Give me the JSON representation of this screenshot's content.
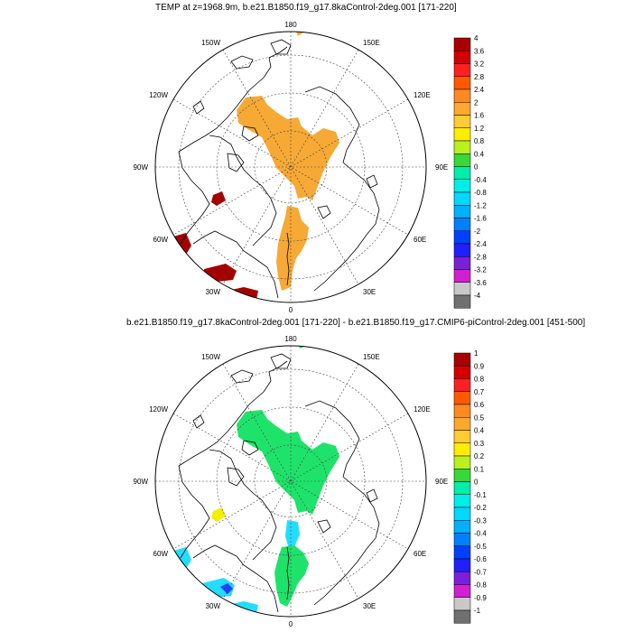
{
  "panels": [
    {
      "title": "TEMP at z=1968.9m, b.e21.B1850.f19_g17.8kaControl-2deg.001 [171-220]",
      "lon_labels": [
        "180",
        "150E",
        "120E",
        "90E",
        "60E",
        "30E",
        "0",
        "30W",
        "60W",
        "90W",
        "120W",
        "150W"
      ],
      "colorbar": {
        "labels": [
          "4",
          "3.6",
          "3.2",
          "2.8",
          "2.4",
          "2",
          "1.6",
          "1.2",
          "0.8",
          "0.4",
          "0",
          "-0.4",
          "-0.8",
          "-1.2",
          "-1.6",
          "-2",
          "-2.4",
          "-2.8",
          "-3.2",
          "-3.6",
          "-4"
        ]
      }
    },
    {
      "title": "b.e21.B1850.f19_g17.8kaControl-2deg.001 [171-220] - b.e21.B1850.f19_g17.CMIP6-piControl-2deg.001 [451-500]",
      "lon_labels": [
        "180",
        "150E",
        "120E",
        "90E",
        "60E",
        "30E",
        "0",
        "30W",
        "60W",
        "90W",
        "120W",
        "150W"
      ],
      "colorbar": {
        "labels": [
          "1",
          "0.9",
          "0.8",
          "0.7",
          "0.6",
          "0.5",
          "0.4",
          "0.3",
          "0.2",
          "0.1",
          "0",
          "-0.1",
          "-0.2",
          "-0.3",
          "-0.4",
          "-0.5",
          "-0.6",
          "-0.7",
          "-0.8",
          "-0.9",
          "-1"
        ]
      }
    }
  ],
  "colors": {
    "palette": [
      "#a80000",
      "#d40000",
      "#ff2020",
      "#ff5a00",
      "#ff8a20",
      "#ffa830",
      "#ffcc33",
      "#ffee00",
      "#b8f020",
      "#38d838",
      "#00eeaa",
      "#00eee8",
      "#00d8ff",
      "#00b0ff",
      "#0080ff",
      "#0040ff",
      "#2020ff",
      "#7a20d8",
      "#d020d0",
      "#c8c8c8",
      "#707070"
    ],
    "top_warm": "#f7a935",
    "top_hot": "#a50000",
    "bottom_green": "#1ee36a",
    "bottom_cyan": "#22ddff",
    "bottom_yellow": "#f2f000"
  }
}
